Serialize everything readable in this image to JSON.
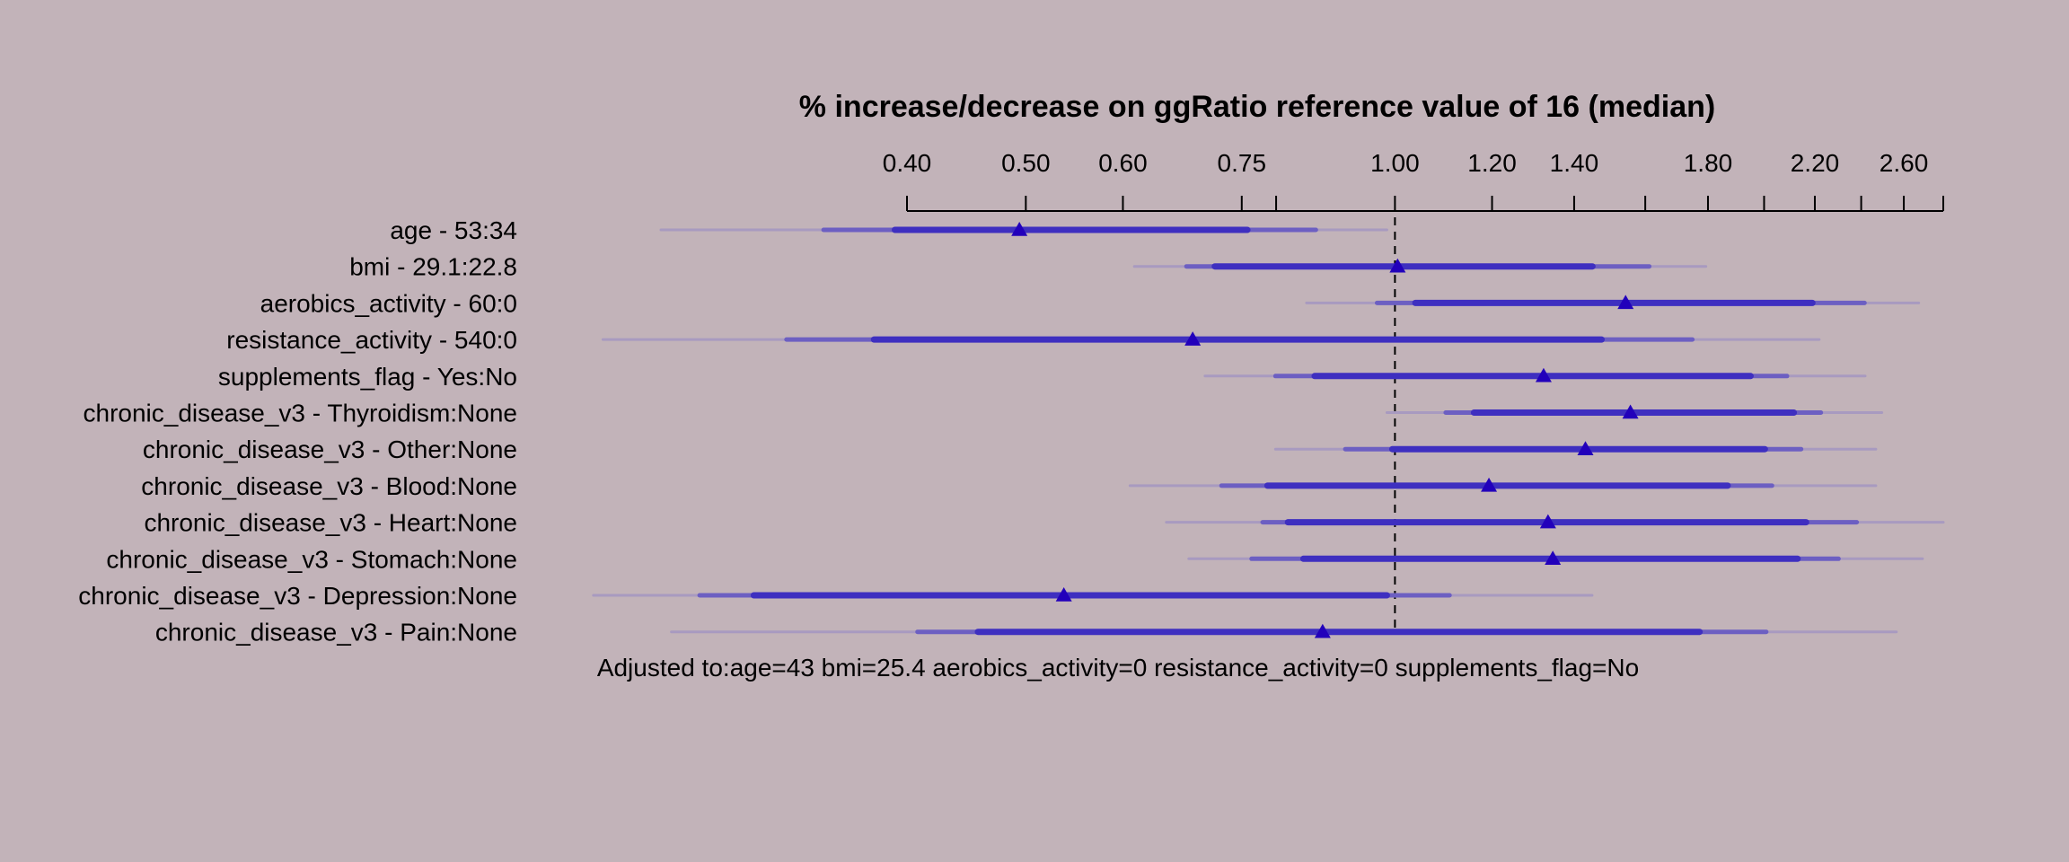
{
  "chart_data": {
    "type": "forest",
    "title": "% increase/decrease on ggRatio reference value of 16 (median)",
    "scale": "log",
    "xlim": [
      0.4,
      2.8
    ],
    "reference": 1.0,
    "tick_values": [
      0.4,
      0.5,
      0.6,
      0.75,
      1.0,
      1.2,
      1.4,
      1.8,
      2.2,
      2.6
    ],
    "tick_labels": [
      "0.40",
      "0.50",
      "0.60",
      "0.75",
      "1.00",
      "1.20",
      "1.40",
      "1.80",
      "2.20",
      "2.60"
    ],
    "minor_ticks": [
      0.8,
      1.6,
      2.0,
      2.4,
      2.8
    ],
    "rows": [
      {
        "label": "age - 53:34",
        "estimate": 0.494,
        "ci": [
          [
            0.252,
            0.985
          ],
          [
            0.342,
            0.862
          ],
          [
            0.391,
            0.758
          ]
        ]
      },
      {
        "label": "bmi - 29.1:22.8",
        "estimate": 1.005,
        "ci": [
          [
            0.613,
            1.793
          ],
          [
            0.676,
            1.612
          ],
          [
            0.713,
            1.449
          ]
        ]
      },
      {
        "label": "aerobics_activity - 60:0",
        "estimate": 1.542,
        "ci": [
          [
            0.847,
            2.674
          ],
          [
            0.967,
            2.415
          ],
          [
            1.039,
            2.19
          ]
        ]
      },
      {
        "label": "resistance_activity - 540:0",
        "estimate": 0.684,
        "ci": [
          [
            0.226,
            2.218
          ],
          [
            0.319,
            1.748
          ],
          [
            0.376,
            1.474
          ]
        ]
      },
      {
        "label": "supplements_flag - Yes:No",
        "estimate": 1.322,
        "ci": [
          [
            0.7,
            2.418
          ],
          [
            0.799,
            2.088
          ],
          [
            0.86,
            1.95
          ]
        ]
      },
      {
        "label": "chronic_disease_v3 - Thyroidism:None",
        "estimate": 1.556,
        "ci": [
          [
            0.985,
            2.495
          ],
          [
            1.1,
            2.225
          ],
          [
            1.16,
            2.115
          ]
        ]
      },
      {
        "label": "chronic_disease_v3 - Other:None",
        "estimate": 1.43,
        "ci": [
          [
            0.799,
            2.467
          ],
          [
            0.911,
            2.144
          ],
          [
            0.995,
            2.003
          ]
        ]
      },
      {
        "label": "chronic_disease_v3 - Blood:None",
        "estimate": 1.193,
        "ci": [
          [
            0.608,
            2.467
          ],
          [
            0.722,
            2.03
          ],
          [
            0.787,
            1.868
          ]
        ]
      },
      {
        "label": "chronic_disease_v3 - Heart:None",
        "estimate": 1.333,
        "ci": [
          [
            0.651,
            2.8
          ],
          [
            0.78,
            2.38
          ],
          [
            0.818,
            2.164
          ]
        ]
      },
      {
        "label": "chronic_disease_v3 - Stomach:None",
        "estimate": 1.345,
        "ci": [
          [
            0.679,
            2.693
          ],
          [
            0.764,
            2.3
          ],
          [
            0.842,
            2.13
          ]
        ]
      },
      {
        "label": "chronic_disease_v3 - Depression:None",
        "estimate": 0.537,
        "ci": [
          [
            0.222,
            1.448
          ],
          [
            0.271,
            1.108
          ],
          [
            0.3,
            0.985
          ]
        ]
      },
      {
        "label": "chronic_disease_v3 - Pain:None",
        "estimate": 0.873,
        "ci": [
          [
            0.257,
            2.564
          ],
          [
            0.408,
            2.008
          ],
          [
            0.457,
            1.772
          ]
        ]
      }
    ],
    "footer": "Adjusted to:age=43 bmi=25.4 aerobics_activity=0 resistance_activity=0 supplements_flag=No",
    "colors": {
      "background": "#c2b3b9",
      "point": "#2200bb",
      "ci_inner": "#3e2fc0",
      "ci_mid": "#6c5fc2",
      "ci_outer": "#a89ac0",
      "reference_line": "#000000"
    }
  }
}
